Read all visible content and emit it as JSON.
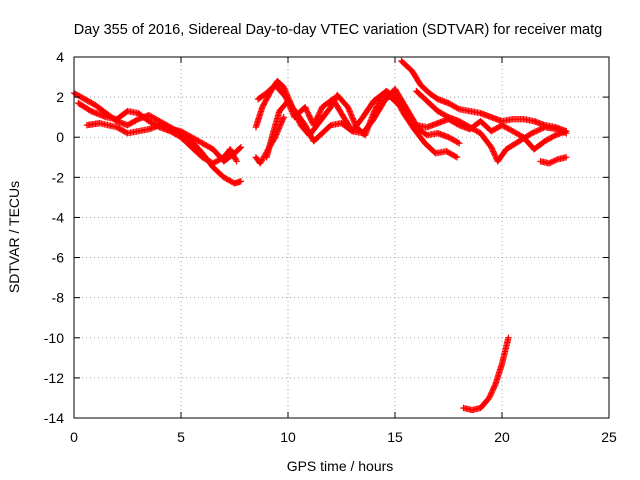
{
  "chart_data": {
    "type": "scatter",
    "title": "Day 355 of 2016, Sidereal Day-to-day VTEC variation (SDTVAR) for receiver matg",
    "xlabel": "GPS time / hours",
    "ylabel": "SDTVAR / TECUs",
    "xlim": [
      0,
      25
    ],
    "ylim": [
      -14,
      4
    ],
    "xticks": [
      0,
      5,
      10,
      15,
      20,
      25
    ],
    "yticks": [
      -14,
      -12,
      -10,
      -8,
      -6,
      -4,
      -2,
      0,
      2,
      4
    ],
    "grid": true,
    "marker": "+",
    "color": "#ff0000",
    "series": [
      {
        "name": "track-1",
        "points": [
          [
            0.0,
            2.2
          ],
          [
            0.5,
            1.9
          ],
          [
            1.0,
            1.6
          ],
          [
            1.5,
            1.2
          ],
          [
            2.0,
            0.8
          ],
          [
            2.5,
            0.6
          ],
          [
            3.0,
            0.9
          ],
          [
            3.5,
            1.1
          ],
          [
            4.0,
            0.8
          ],
          [
            4.5,
            0.5
          ],
          [
            5.0,
            0.2
          ],
          [
            5.5,
            -0.2
          ],
          [
            6.0,
            -0.8
          ],
          [
            6.5,
            -1.5
          ],
          [
            7.0,
            -2.0
          ],
          [
            7.5,
            -2.3
          ],
          [
            7.8,
            -2.2
          ]
        ]
      },
      {
        "name": "track-2",
        "points": [
          [
            0.2,
            1.7
          ],
          [
            0.8,
            1.3
          ],
          [
            1.5,
            1.0
          ],
          [
            2.0,
            0.9
          ],
          [
            2.5,
            1.3
          ],
          [
            3.0,
            1.2
          ],
          [
            3.5,
            0.8
          ],
          [
            4.0,
            0.5
          ],
          [
            4.5,
            0.3
          ],
          [
            5.0,
            0.0
          ],
          [
            5.5,
            -0.5
          ],
          [
            6.0,
            -1.0
          ],
          [
            6.5,
            -1.3
          ],
          [
            7.0,
            -1.0
          ],
          [
            7.3,
            -0.6
          ],
          [
            7.6,
            -1.2
          ]
        ]
      },
      {
        "name": "track-3",
        "points": [
          [
            0.6,
            0.6
          ],
          [
            1.2,
            0.7
          ],
          [
            2.0,
            0.5
          ],
          [
            2.5,
            0.2
          ],
          [
            3.0,
            0.3
          ],
          [
            3.5,
            0.4
          ],
          [
            4.0,
            0.6
          ],
          [
            4.5,
            0.4
          ],
          [
            5.0,
            0.3
          ],
          [
            5.5,
            0.0
          ],
          [
            6.0,
            -0.3
          ],
          [
            6.5,
            -0.6
          ],
          [
            7.0,
            -1.2
          ],
          [
            7.5,
            -0.8
          ],
          [
            7.8,
            -0.5
          ]
        ]
      },
      {
        "name": "track-4",
        "points": [
          [
            8.5,
            0.5
          ],
          [
            8.8,
            1.5
          ],
          [
            9.2,
            2.3
          ],
          [
            9.5,
            2.8
          ],
          [
            9.8,
            2.5
          ],
          [
            10.2,
            1.5
          ],
          [
            10.6,
            0.6
          ],
          [
            11.0,
            0.1
          ],
          [
            11.5,
            0.8
          ],
          [
            12.0,
            1.5
          ],
          [
            12.3,
            2.1
          ],
          [
            12.8,
            1.5
          ],
          [
            13.2,
            0.5
          ],
          [
            13.6,
            0.1
          ],
          [
            14.0,
            1.2
          ],
          [
            14.4,
            2.1
          ],
          [
            14.8,
            2.0
          ],
          [
            15.2,
            1.6
          ],
          [
            15.6,
            1.2
          ],
          [
            16.0,
            0.5
          ],
          [
            16.5,
            0.1
          ],
          [
            17.0,
            0.2
          ],
          [
            17.5,
            0.0
          ],
          [
            18.0,
            -0.3
          ]
        ]
      },
      {
        "name": "track-5",
        "points": [
          [
            8.6,
            1.9
          ],
          [
            9.0,
            2.2
          ],
          [
            9.4,
            2.6
          ],
          [
            9.9,
            2.0
          ],
          [
            10.3,
            1.0
          ],
          [
            10.8,
            1.5
          ],
          [
            11.2,
            0.6
          ],
          [
            11.6,
            1.5
          ],
          [
            12.1,
            1.9
          ],
          [
            12.6,
            1.0
          ],
          [
            13.0,
            0.3
          ],
          [
            13.5,
            1.0
          ],
          [
            14.0,
            1.8
          ],
          [
            14.6,
            2.3
          ],
          [
            15.0,
            2.0
          ],
          [
            15.4,
            1.2
          ],
          [
            15.9,
            0.4
          ],
          [
            16.4,
            -0.3
          ],
          [
            16.9,
            -0.8
          ],
          [
            17.4,
            -0.7
          ],
          [
            17.9,
            -1.0
          ]
        ]
      },
      {
        "name": "track-6",
        "points": [
          [
            9.0,
            -1.0
          ],
          [
            9.3,
            0.2
          ],
          [
            9.6,
            1.3
          ],
          [
            10.0,
            1.8
          ],
          [
            10.4,
            1.2
          ],
          [
            10.8,
            0.6
          ],
          [
            11.2,
            -0.2
          ],
          [
            11.6,
            0.2
          ],
          [
            12.0,
            0.6
          ],
          [
            12.5,
            0.7
          ],
          [
            13.0,
            0.3
          ],
          [
            13.5,
            0.2
          ],
          [
            14.0,
            0.9
          ],
          [
            14.5,
            1.8
          ],
          [
            15.0,
            2.4
          ],
          [
            15.5,
            1.5
          ],
          [
            16.0,
            0.6
          ],
          [
            16.5,
            0.5
          ],
          [
            17.0,
            0.7
          ],
          [
            17.5,
            0.9
          ],
          [
            18.0,
            0.6
          ],
          [
            18.5,
            0.4
          ],
          [
            19.0,
            0.8
          ],
          [
            19.5,
            0.3
          ],
          [
            20.0,
            0.6
          ],
          [
            20.5,
            0.3
          ],
          [
            21.0,
            0.0
          ],
          [
            21.5,
            -0.6
          ],
          [
            22.0,
            -0.2
          ],
          [
            22.5,
            0.1
          ],
          [
            23.0,
            0.3
          ]
        ]
      },
      {
        "name": "track-7",
        "points": [
          [
            8.5,
            -1.0
          ],
          [
            8.7,
            -1.3
          ],
          [
            9.4,
            0.0
          ],
          [
            9.8,
            1.0
          ]
        ]
      },
      {
        "name": "track-8",
        "points": [
          [
            15.3,
            3.8
          ],
          [
            15.8,
            3.3
          ],
          [
            16.2,
            2.6
          ],
          [
            16.6,
            2.2
          ],
          [
            17.0,
            1.9
          ],
          [
            17.5,
            1.7
          ],
          [
            18.0,
            1.4
          ],
          [
            18.5,
            1.3
          ],
          [
            19.0,
            1.2
          ],
          [
            19.5,
            1.0
          ],
          [
            20.0,
            0.8
          ],
          [
            20.5,
            0.9
          ],
          [
            21.0,
            0.9
          ],
          [
            21.5,
            0.8
          ],
          [
            22.0,
            0.6
          ],
          [
            22.5,
            0.5
          ],
          [
            23.0,
            0.3
          ]
        ]
      },
      {
        "name": "track-9",
        "points": [
          [
            16.0,
            2.3
          ],
          [
            16.5,
            1.8
          ],
          [
            17.0,
            1.3
          ],
          [
            17.5,
            1.0
          ],
          [
            18.0,
            0.8
          ],
          [
            18.5,
            0.5
          ],
          [
            19.0,
            0.2
          ],
          [
            19.5,
            -0.5
          ],
          [
            19.8,
            -1.2
          ],
          [
            20.2,
            -0.6
          ],
          [
            20.8,
            -0.2
          ],
          [
            21.4,
            0.2
          ],
          [
            22.0,
            0.5
          ],
          [
            22.6,
            0.4
          ],
          [
            23.0,
            0.2
          ]
        ]
      },
      {
        "name": "track-10",
        "points": [
          [
            21.8,
            -1.2
          ],
          [
            22.2,
            -1.3
          ],
          [
            22.6,
            -1.1
          ],
          [
            23.0,
            -1.0
          ]
        ]
      },
      {
        "name": "track-11",
        "points": [
          [
            18.2,
            -13.5
          ],
          [
            18.6,
            -13.6
          ],
          [
            19.0,
            -13.5
          ],
          [
            19.4,
            -13.0
          ],
          [
            19.7,
            -12.3
          ],
          [
            20.0,
            -11.3
          ],
          [
            20.3,
            -10.0
          ]
        ]
      }
    ]
  }
}
